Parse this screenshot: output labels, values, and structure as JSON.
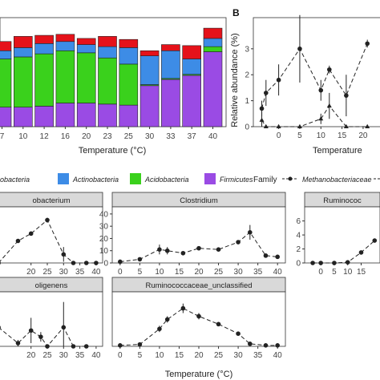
{
  "colors": {
    "Firmicutes": "#9a4be4",
    "Acidobacteria": "#3ad11c",
    "Actinobacteria": "#3d8ce6",
    "Proteobacteria": "#e5121a",
    "strip_bg": "#d9d9d9",
    "line": "#222222"
  },
  "panel_b_letter": "B",
  "legend": {
    "phylum_items": [
      "obacteria",
      "Actinobacteria",
      "Acidobacteria",
      "Firmicutes"
    ],
    "family_title": "Family",
    "family_items": [
      "Methanobacteriaceae"
    ]
  },
  "chart_data": [
    {
      "type": "bar",
      "stacked": true,
      "xlabel": "Temperature (°C)",
      "categories": [
        "7",
        "10",
        "12",
        "16",
        "20",
        "23",
        "25",
        "30",
        "33",
        "37",
        "40"
      ],
      "ylim": [
        0,
        100
      ],
      "series": [
        {
          "name": "Firmicutes",
          "values": [
            19,
            19,
            20,
            23,
            23,
            22,
            21,
            40,
            46,
            50,
            73
          ]
        },
        {
          "name": "Acidobacteria",
          "values": [
            47,
            49,
            51,
            51,
            49,
            45,
            40,
            1,
            1,
            1,
            5
          ]
        },
        {
          "name": "Actinobacteria",
          "values": [
            8,
            9,
            10,
            9,
            8,
            11,
            16,
            28,
            27,
            15,
            8
          ]
        },
        {
          "name": "Proteobacteria",
          "values": [
            9,
            11,
            8,
            7,
            6,
            10,
            8,
            5,
            6,
            13,
            10
          ]
        }
      ]
    },
    {
      "type": "line",
      "ylabel": "Relative abundance (%)",
      "xlabel": "Temperature",
      "x_ticks": [
        "0",
        "5",
        "10",
        "15",
        "20"
      ],
      "y_ticks": [
        "0",
        "1",
        "2",
        "3"
      ],
      "ylim": [
        0,
        4.2
      ],
      "series": [
        {
          "marker": "circle",
          "x": [
            -4,
            -3,
            0,
            5,
            10,
            12,
            16,
            21
          ],
          "y": [
            0.7,
            1.3,
            1.8,
            3.0,
            1.4,
            2.2,
            1.2,
            3.2
          ],
          "err": [
            0.3,
            0.5,
            0.6,
            1.3,
            0.4,
            0.15,
            0.8,
            0.15
          ]
        },
        {
          "marker": "triangle",
          "x": [
            -4,
            -3,
            0,
            5,
            10,
            12,
            16,
            21
          ],
          "y": [
            0.25,
            0.0,
            0.0,
            0.0,
            0.3,
            0.8,
            0.0,
            0.0
          ],
          "err": [
            0.3,
            0.0,
            0.0,
            0.0,
            0.2,
            0.5,
            0.0,
            0.0
          ]
        }
      ]
    },
    {
      "type": "line",
      "title": "obacterium",
      "x": [
        10,
        16,
        20,
        25,
        30,
        33,
        37,
        40
      ],
      "y": [
        0,
        18,
        24,
        35,
        7,
        0,
        0,
        0
      ],
      "err": [
        0,
        0,
        0,
        2,
        6,
        0,
        0,
        0
      ],
      "x_ticks": [
        "20",
        "25",
        "30",
        "35",
        "40"
      ],
      "y_ticks": []
    },
    {
      "type": "line",
      "title": "Clostridium",
      "x": [
        0,
        5,
        10,
        12,
        16,
        20,
        25,
        30,
        33,
        37,
        40
      ],
      "y": [
        1,
        3,
        11,
        10,
        8,
        12,
        11,
        17,
        25,
        6,
        5
      ],
      "err": [
        0,
        0,
        4,
        3,
        0,
        0,
        0,
        0,
        6,
        1.5,
        0
      ],
      "ylim": [
        0,
        40
      ],
      "x_ticks": [
        "0",
        "5",
        "10",
        "15",
        "20",
        "25",
        "30",
        "35",
        "40"
      ],
      "y_ticks": [
        "0",
        "10",
        "20",
        "30",
        "40"
      ]
    },
    {
      "type": "line",
      "title": "Ruminococ",
      "x": [
        -3,
        0,
        5,
        10,
        15,
        20
      ],
      "y": [
        0,
        0,
        0,
        0.1,
        1.5,
        3.2
      ],
      "err": [
        0,
        0,
        0,
        0,
        0,
        0
      ],
      "ylim": [
        0,
        7
      ],
      "x_ticks": [
        "0",
        "5",
        "10",
        "15"
      ],
      "y_ticks": [
        "0",
        "2",
        "4",
        "6"
      ]
    },
    {
      "type": "line",
      "title": "oligenens",
      "x": [
        10,
        16,
        20,
        23,
        25,
        30,
        33,
        37
      ],
      "y": [
        12,
        2,
        10,
        6,
        0,
        12,
        0,
        0
      ],
      "err": [
        4,
        2,
        8,
        3,
        0,
        16,
        0,
        0
      ],
      "x_ticks": [
        "20",
        "25",
        "30",
        "35",
        "40"
      ],
      "y_ticks": []
    },
    {
      "type": "line",
      "title": "Ruminococcaceae_unclassified",
      "xlabel": "Temperature (°C)",
      "x": [
        0,
        5,
        10,
        12,
        16,
        20,
        25,
        30,
        33,
        37,
        40
      ],
      "y": [
        0.3,
        0.6,
        5.5,
        8.5,
        12,
        9.5,
        7,
        4,
        0.8,
        0.3,
        0.3
      ],
      "err": [
        0,
        0,
        1,
        1,
        1.5,
        1,
        0.5,
        0.5,
        0,
        0,
        0
      ],
      "ylim": [
        0,
        15
      ],
      "x_ticks": [
        "0",
        "5",
        "10",
        "15",
        "20",
        "25",
        "30",
        "35",
        "40"
      ],
      "y_ticks": []
    }
  ]
}
